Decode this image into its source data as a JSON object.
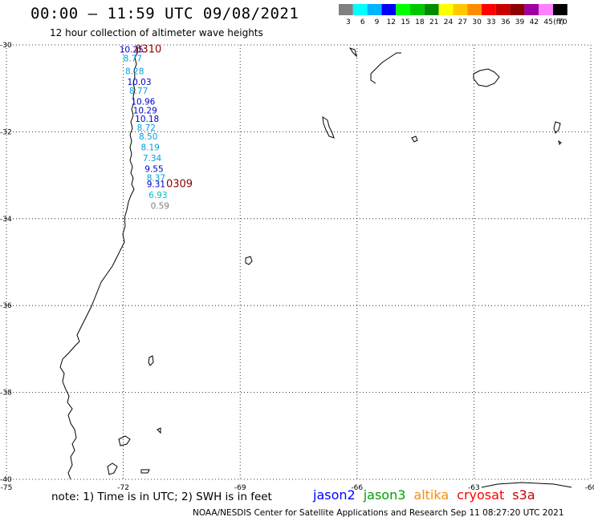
{
  "header": {
    "title": "00:00 – 11:59 UTC 09/08/2021",
    "subtitle": "12 hour collection of altimeter wave heights"
  },
  "legend": {
    "unit": "(ft)",
    "bins": [
      {
        "label": "3",
        "color": "#808080"
      },
      {
        "label": "6",
        "color": "#00ffff"
      },
      {
        "label": "9",
        "color": "#00b4ff"
      },
      {
        "label": "12",
        "color": "#0000ff"
      },
      {
        "label": "15",
        "color": "#00ff00"
      },
      {
        "label": "18",
        "color": "#00c800"
      },
      {
        "label": "21",
        "color": "#008c00"
      },
      {
        "label": "24",
        "color": "#ffff00"
      },
      {
        "label": "27",
        "color": "#ffc800"
      },
      {
        "label": "30",
        "color": "#ff8c00"
      },
      {
        "label": "33",
        "color": "#ff0000"
      },
      {
        "label": "36",
        "color": "#c80000"
      },
      {
        "label": "39",
        "color": "#8c0000"
      },
      {
        "label": "42",
        "color": "#a000a0"
      },
      {
        "label": "45",
        "color": "#ff80ff"
      },
      {
        "label": "70",
        "color": "#000000"
      }
    ]
  },
  "map": {
    "lat_range": [
      -40,
      -30
    ],
    "lon_range": [
      -75,
      -60
    ],
    "lat_ticks": [
      "-30",
      "-32",
      "-34",
      "-36",
      "-38",
      "-40"
    ],
    "lon_ticks": [
      "-75",
      "-72",
      "-69",
      "-66",
      "-63",
      "-60"
    ],
    "grid": "dotted"
  },
  "track": {
    "time_labels": [
      {
        "text": "0310",
        "lat": -30.1,
        "lon": -71.7,
        "color": "#8b0000"
      },
      {
        "text": "0309",
        "lat": -33.2,
        "lon": -70.9,
        "color": "#8b0000"
      }
    ],
    "points": [
      {
        "value": "10.25",
        "lat": -30.1,
        "lon": -72.1,
        "color": "#0000cd"
      },
      {
        "value": "8.77",
        "lat": -30.3,
        "lon": -72.0,
        "color": "#00a0e0"
      },
      {
        "value": "8.28",
        "lat": -30.6,
        "lon": -71.95,
        "color": "#00a0e0"
      },
      {
        "value": "10.03",
        "lat": -30.85,
        "lon": -71.9,
        "color": "#0000cd"
      },
      {
        "value": "8.77",
        "lat": -31.05,
        "lon": -71.85,
        "color": "#00a0e0"
      },
      {
        "value": "10.96",
        "lat": -31.3,
        "lon": -71.8,
        "color": "#0000cd"
      },
      {
        "value": "10.29",
        "lat": -31.5,
        "lon": -71.75,
        "color": "#0000cd"
      },
      {
        "value": "10.18",
        "lat": -31.7,
        "lon": -71.7,
        "color": "#0000cd"
      },
      {
        "value": "8.72",
        "lat": -31.9,
        "lon": -71.65,
        "color": "#00a0e0"
      },
      {
        "value": "8.50",
        "lat": -32.1,
        "lon": -71.6,
        "color": "#00a0e0"
      },
      {
        "value": "8.19",
        "lat": -32.35,
        "lon": -71.55,
        "color": "#00a0e0"
      },
      {
        "value": "7.34",
        "lat": -32.6,
        "lon": -71.5,
        "color": "#00a0e0"
      },
      {
        "value": "9.55",
        "lat": -32.85,
        "lon": -71.45,
        "color": "#0000cd"
      },
      {
        "value": "8.37",
        "lat": -33.05,
        "lon": -71.4,
        "color": "#00a0e0"
      },
      {
        "value": "9.31",
        "lat": -33.2,
        "lon": -71.4,
        "color": "#0000cd"
      },
      {
        "value": "6.93",
        "lat": -33.45,
        "lon": -71.35,
        "color": "#00bfbf"
      },
      {
        "value": "0.59",
        "lat": -33.7,
        "lon": -71.3,
        "color": "#808080"
      }
    ]
  },
  "footer": {
    "note": "note: 1) Time is in UTC; 2) SWH is in feet",
    "satellites": [
      {
        "name": "jason2",
        "color": "#0000ff"
      },
      {
        "name": "jason3",
        "color": "#00a000"
      },
      {
        "name": "altika",
        "color": "#ff8c00"
      },
      {
        "name": "cryosat",
        "color": "#ff0000"
      },
      {
        "name": "s3a",
        "color": "#c80000"
      }
    ],
    "credit": "NOAA/NESDIS Center for Satellite Applications and Research    Sep 11 08:27:20 UTC 2021"
  }
}
